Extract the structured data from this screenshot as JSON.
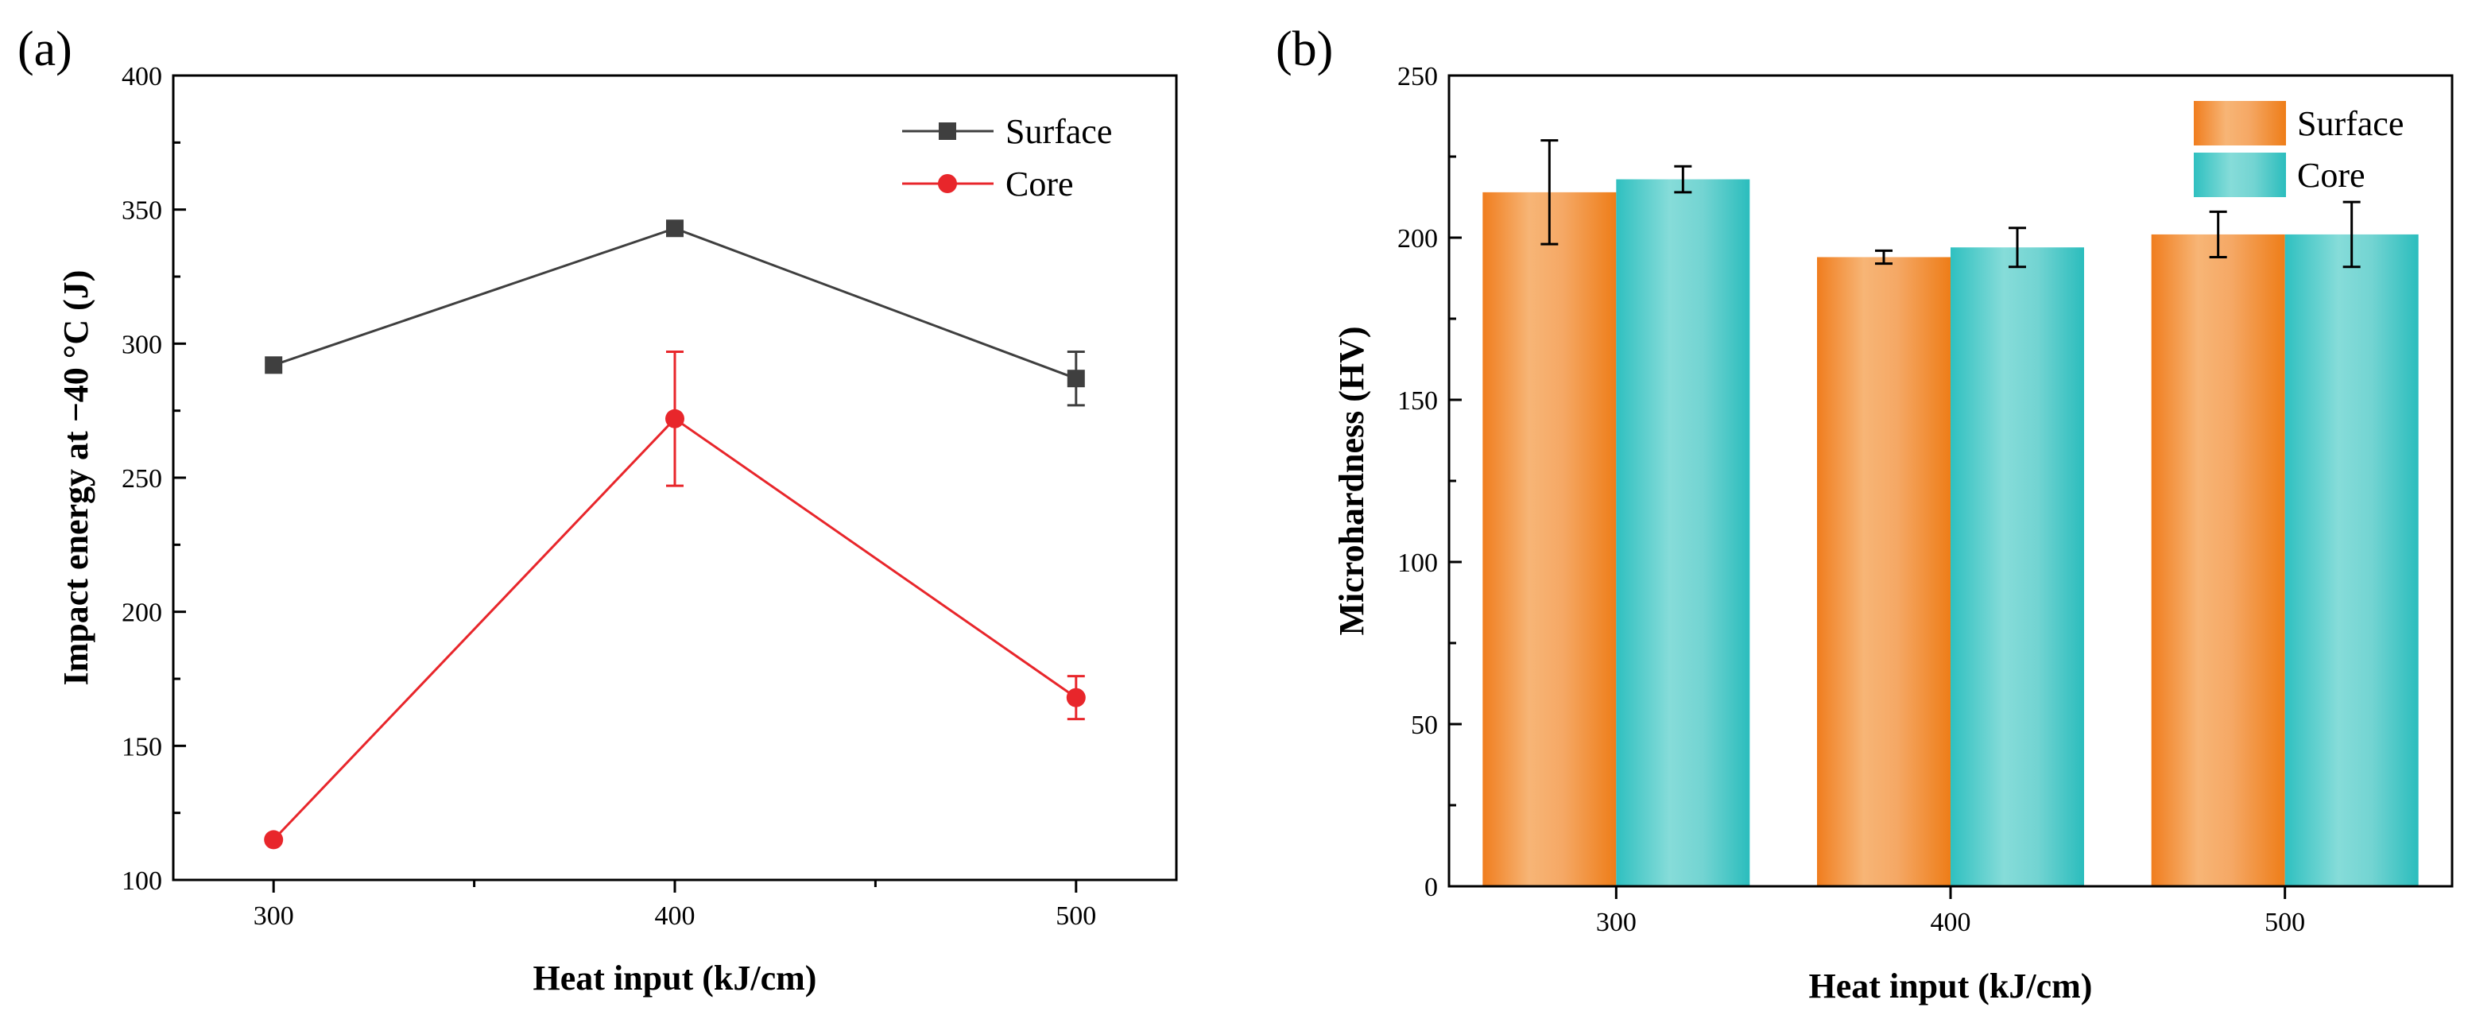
{
  "chart_data": [
    {
      "panel": "(a)",
      "type": "line",
      "xlabel": "Heat input (kJ/cm)",
      "ylabel": "Impact energy at −40 °C (J)",
      "x": [
        300,
        400,
        500
      ],
      "xlim": [
        275,
        525
      ],
      "ylim": [
        100,
        400
      ],
      "xticks": [
        300,
        400,
        500
      ],
      "yticks": [
        100,
        150,
        200,
        250,
        300,
        350,
        400
      ],
      "legend_position": "top-right",
      "series": [
        {
          "name": "Surface",
          "marker": "square",
          "color": "#3f3f3f",
          "values": [
            292,
            343,
            287
          ],
          "errors": [
            0,
            0,
            10
          ]
        },
        {
          "name": "Core",
          "marker": "circle",
          "color": "#e8262b",
          "values": [
            115,
            272,
            168
          ],
          "errors": [
            0,
            25,
            8
          ]
        }
      ]
    },
    {
      "panel": "(b)",
      "type": "bar",
      "xlabel": "Heat input (kJ/cm)",
      "ylabel": "Microhardness (HV)",
      "categories": [
        "300",
        "400",
        "500"
      ],
      "ylim": [
        0,
        250
      ],
      "yticks": [
        0,
        50,
        100,
        150,
        200,
        250
      ],
      "legend_position": "top-right",
      "series": [
        {
          "name": "Surface",
          "color": "#f08a2a",
          "values": [
            214,
            194,
            201
          ],
          "errors": [
            16,
            2,
            7
          ]
        },
        {
          "name": "Core",
          "color": "#3cc3c3",
          "values": [
            218,
            197,
            201
          ],
          "errors": [
            4,
            6,
            10
          ]
        }
      ]
    }
  ]
}
